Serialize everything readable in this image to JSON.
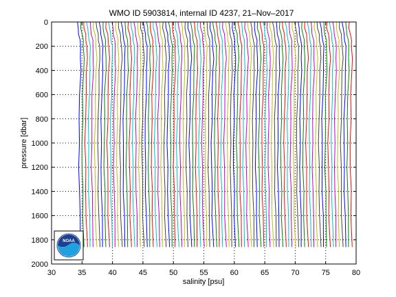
{
  "chart_data": {
    "type": "line",
    "title": "WMO ID 5903814, internal ID 4237, 21–Nov–2017",
    "xlabel": "salinity [psu]",
    "ylabel": "pressure [dbar]",
    "xlim": [
      30,
      80
    ],
    "ylim": [
      0,
      2000
    ],
    "y_reversed": true,
    "grid": "dotted",
    "x_ticks": [
      30,
      35,
      40,
      45,
      50,
      55,
      60,
      65,
      70,
      75,
      80
    ],
    "y_ticks": [
      0,
      200,
      400,
      600,
      800,
      1000,
      1200,
      1400,
      1600,
      1800,
      2000
    ],
    "profiles": {
      "description": "Repeated salinity profiles, each offset by a constant step along the salinity axis",
      "count": 87,
      "first_offset_psu": 34.2,
      "offset_step_psu": 0.518,
      "pressure_range": [
        0,
        1860
      ],
      "base_profile": {
        "pressure": [
          0,
          50,
          100,
          150,
          200,
          300,
          400,
          600,
          800,
          1000,
          1200,
          1400,
          1600,
          1860
        ],
        "salinity": [
          0.05,
          0.12,
          0.3,
          0.45,
          0.55,
          0.6,
          0.55,
          0.42,
          0.35,
          0.3,
          0.32,
          0.38,
          0.45,
          0.6
        ]
      },
      "colors": [
        "#0000ff",
        "#008000",
        "#ff0000",
        "#00bfbf",
        "#bf00bf",
        "#bfbf00",
        "#404040"
      ]
    },
    "logo": "NOAA"
  }
}
